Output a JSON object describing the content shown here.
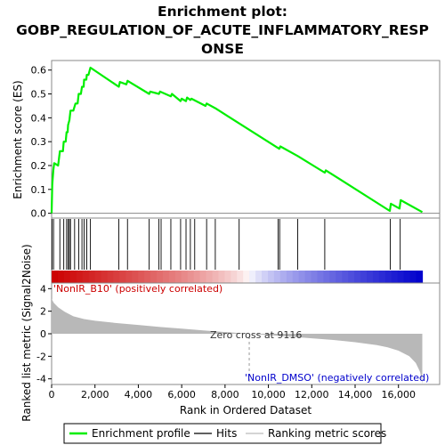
{
  "chart_data": {
    "type": "line",
    "title_line1": "Enrichment plot:",
    "title_line2": "GOBP_REGULATION_OF_ACUTE_INFLAMMATORY_RESP",
    "title_line3": "ONSE",
    "top_panel": {
      "ylabel": "Enrichment score (ES)",
      "ylim": [
        -0.02,
        0.64
      ],
      "yticks": [
        0.0,
        0.1,
        0.2,
        0.3,
        0.4,
        0.5,
        0.6
      ],
      "ytick_labels": [
        "0.0",
        "0.1",
        "0.2",
        "0.3",
        "0.4",
        "0.5",
        "0.6"
      ],
      "series_name": "Enrichment profile",
      "color": "#00ff00",
      "points": [
        [
          0,
          0.0
        ],
        [
          30,
          0.12
        ],
        [
          80,
          0.18
        ],
        [
          120,
          0.21
        ],
        [
          300,
          0.2
        ],
        [
          380,
          0.26
        ],
        [
          520,
          0.26
        ],
        [
          560,
          0.3
        ],
        [
          650,
          0.3
        ],
        [
          690,
          0.34
        ],
        [
          740,
          0.34
        ],
        [
          760,
          0.37
        ],
        [
          820,
          0.39
        ],
        [
          870,
          0.43
        ],
        [
          1000,
          0.43
        ],
        [
          1100,
          0.46
        ],
        [
          1200,
          0.46
        ],
        [
          1250,
          0.5
        ],
        [
          1350,
          0.5
        ],
        [
          1400,
          0.53
        ],
        [
          1480,
          0.53
        ],
        [
          1500,
          0.56
        ],
        [
          1600,
          0.56
        ],
        [
          1620,
          0.58
        ],
        [
          1700,
          0.58
        ],
        [
          1790,
          0.61
        ],
        [
          3100,
          0.53
        ],
        [
          3150,
          0.55
        ],
        [
          3450,
          0.54
        ],
        [
          3500,
          0.555
        ],
        [
          4500,
          0.5
        ],
        [
          4550,
          0.51
        ],
        [
          4950,
          0.5
        ],
        [
          5000,
          0.51
        ],
        [
          5500,
          0.49
        ],
        [
          5550,
          0.5
        ],
        [
          5950,
          0.47
        ],
        [
          6000,
          0.48
        ],
        [
          6200,
          0.47
        ],
        [
          6250,
          0.485
        ],
        [
          6400,
          0.475
        ],
        [
          6450,
          0.48
        ],
        [
          7100,
          0.45
        ],
        [
          7150,
          0.46
        ],
        [
          7550,
          0.44
        ],
        [
          10500,
          0.27
        ],
        [
          10550,
          0.28
        ],
        [
          11350,
          0.24
        ],
        [
          12600,
          0.17
        ],
        [
          12650,
          0.18
        ],
        [
          15600,
          0.01
        ],
        [
          15650,
          0.04
        ],
        [
          16050,
          0.02
        ],
        [
          16100,
          0.055
        ],
        [
          17100,
          0.005
        ]
      ]
    },
    "hits": [
      20,
      90,
      380,
      560,
      690,
      760,
      820,
      870,
      1060,
      1250,
      1400,
      1500,
      1620,
      1790,
      3100,
      3500,
      4500,
      4950,
      5050,
      5500,
      5950,
      6200,
      6400,
      6600,
      7150,
      7550,
      8650,
      10450,
      10520,
      11350,
      12600,
      15620,
      16080
    ],
    "bottom_panel": {
      "ylabel": "Ranked list metric (Signal2Noise)",
      "ylim": [
        -4.5,
        4.5
      ],
      "yticks": [
        -4,
        -2,
        0,
        2,
        4
      ],
      "ytick_labels": [
        "-4",
        "-2",
        "0",
        "2",
        "4"
      ],
      "metric_points": [
        [
          0,
          3.1
        ],
        [
          100,
          2.75
        ],
        [
          300,
          2.35
        ],
        [
          600,
          1.95
        ],
        [
          1000,
          1.55
        ],
        [
          1500,
          1.3
        ],
        [
          2000,
          1.15
        ],
        [
          3000,
          0.95
        ],
        [
          4000,
          0.78
        ],
        [
          5000,
          0.6
        ],
        [
          6000,
          0.45
        ],
        [
          7000,
          0.3
        ],
        [
          8000,
          0.15
        ],
        [
          9116,
          0.0
        ],
        [
          10000,
          -0.12
        ],
        [
          11000,
          -0.26
        ],
        [
          12000,
          -0.4
        ],
        [
          13000,
          -0.55
        ],
        [
          14000,
          -0.75
        ],
        [
          15000,
          -1.0
        ],
        [
          15500,
          -1.2
        ],
        [
          16000,
          -1.5
        ],
        [
          16500,
          -2.0
        ],
        [
          16800,
          -2.6
        ],
        [
          17000,
          -3.4
        ],
        [
          17100,
          -4.45
        ]
      ],
      "zero_cross_rank": 9116,
      "zero_cross_label": "Zero cross at 9116",
      "pos_label": "'NonIR_B10' (positively correlated)",
      "neg_label": "'NonIR_DMSO' (negatively correlated)",
      "pos_color": "#cc0000",
      "neg_color": "#0000cc"
    },
    "xlabel": "Rank in Ordered Dataset",
    "xlim": [
      0,
      17900
    ],
    "xticks": [
      0,
      2000,
      4000,
      6000,
      8000,
      10000,
      12000,
      14000,
      16000
    ],
    "xtick_labels": [
      "0",
      "2,000",
      "4,000",
      "6,000",
      "8,000",
      "10,000",
      "12,000",
      "14,000",
      "16,000"
    ],
    "n_genes": 17100,
    "legend": [
      {
        "label": "Enrichment profile",
        "color": "#00ff00",
        "style": "thick"
      },
      {
        "label": "Hits",
        "color": "#000000",
        "style": "line"
      },
      {
        "label": "Ranking metric scores",
        "color": "#bbbbbb",
        "style": "line"
      }
    ]
  }
}
